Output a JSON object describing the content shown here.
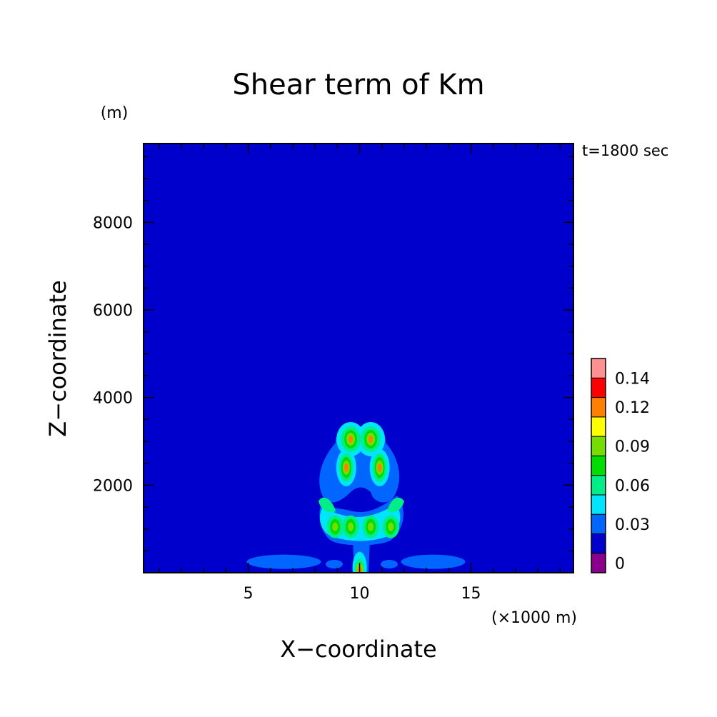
{
  "chart_data": {
    "type": "heatmap",
    "title": "Shear term of Km",
    "xlabel": "X−coordinate",
    "ylabel": "Z−coordinate",
    "x_unit": "(×1000 m)",
    "y_unit": "(m)",
    "time_label": "t=1800 sec",
    "xlim": [
      0.3,
      19.6
    ],
    "ylim": [
      0,
      9800
    ],
    "x_ticks": [
      5,
      10,
      15
    ],
    "x_tick_labels": [
      "5",
      "10",
      "15"
    ],
    "y_ticks": [
      2000,
      4000,
      6000,
      8000
    ],
    "y_tick_labels": [
      "2000",
      "4000",
      "6000",
      "8000"
    ],
    "background_level_color": "#0000CD",
    "colorbar": {
      "colors": [
        "#8B008B",
        "#0000CD",
        "#0066FF",
        "#00E5FF",
        "#00EE88",
        "#00DD00",
        "#77DD00",
        "#FFFF00",
        "#FF7F00",
        "#FF0000",
        "#FF9090"
      ],
      "labels": [
        {
          "text": "0",
          "band": 0.5
        },
        {
          "text": "0.03",
          "band": 2.5
        },
        {
          "text": "0.06",
          "band": 4.5
        },
        {
          "text": "0.09",
          "band": 6.5
        },
        {
          "text": "0.12",
          "band": 8.5
        },
        {
          "text": "0.14",
          "band": 10
        }
      ]
    },
    "features": [
      {
        "name": "upper-left-core",
        "x": 9.6,
        "y": 3050,
        "peak": 0.11
      },
      {
        "name": "upper-right-core",
        "x": 10.5,
        "y": 3050,
        "peak": 0.11
      },
      {
        "name": "mid-left-core",
        "x": 9.4,
        "y": 2400,
        "peak": 0.11
      },
      {
        "name": "mid-right-core",
        "x": 10.9,
        "y": 2400,
        "peak": 0.11
      },
      {
        "name": "lower-band-core-1",
        "x": 8.9,
        "y": 1050,
        "peak": 0.07
      },
      {
        "name": "lower-band-core-2",
        "x": 9.6,
        "y": 1050,
        "peak": 0.07
      },
      {
        "name": "lower-band-core-3",
        "x": 10.5,
        "y": 1050,
        "peak": 0.07
      },
      {
        "name": "lower-band-core-4",
        "x": 11.4,
        "y": 1050,
        "peak": 0.07
      },
      {
        "name": "surface-core",
        "x": 10.0,
        "y": 100,
        "peak": 0.09
      },
      {
        "name": "surface-left-lobe",
        "x": 6.6,
        "y": 250,
        "peak": 0.02
      },
      {
        "name": "surface-right-lobe",
        "x": 13.3,
        "y": 250,
        "peak": 0.02
      }
    ]
  }
}
